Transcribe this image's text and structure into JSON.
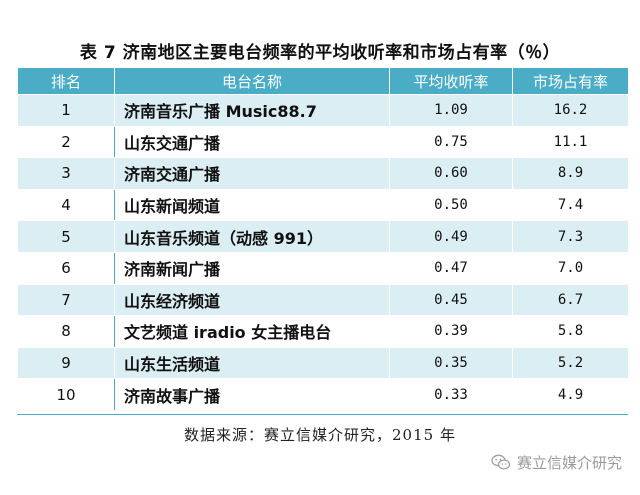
{
  "title": "表 7 济南地区主要电台频率的平均收听率和市场占有率（％）",
  "table": {
    "headers": [
      "排名",
      "电台名称",
      "平均收听率",
      "市场占有率"
    ],
    "rows": [
      {
        "rank": "1",
        "name": "济南音乐广播 Music88.7",
        "rating": "1.09",
        "share": "16.2"
      },
      {
        "rank": "2",
        "name": "山东交通广播",
        "rating": "0.75",
        "share": "11.1"
      },
      {
        "rank": "3",
        "name": "济南交通广播",
        "rating": "0.60",
        "share": "8.9"
      },
      {
        "rank": "4",
        "name": "山东新闻频道",
        "rating": "0.50",
        "share": "7.4"
      },
      {
        "rank": "5",
        "name": "山东音乐频道（动感 991）",
        "rating": "0.49",
        "share": "7.3"
      },
      {
        "rank": "6",
        "name": "济南新闻广播",
        "rating": "0.47",
        "share": "7.0"
      },
      {
        "rank": "7",
        "name": "山东经济频道",
        "rating": "0.45",
        "share": "6.7"
      },
      {
        "rank": "8",
        "name": "文艺频道 iradio 女主播电台",
        "rating": "0.39",
        "share": "5.8"
      },
      {
        "rank": "9",
        "name": "山东生活频道",
        "rating": "0.35",
        "share": "5.2"
      },
      {
        "rank": "10",
        "name": "济南故事广播",
        "rating": "0.33",
        "share": "4.9"
      }
    ]
  },
  "source": "数据来源：赛立信媒介研究，2015 年",
  "watermark": {
    "icon": "wechat-icon",
    "text": "赛立信媒介研究"
  },
  "colors": {
    "header_bg": "#4bacc6",
    "stripe_bg": "#dbeef4"
  }
}
